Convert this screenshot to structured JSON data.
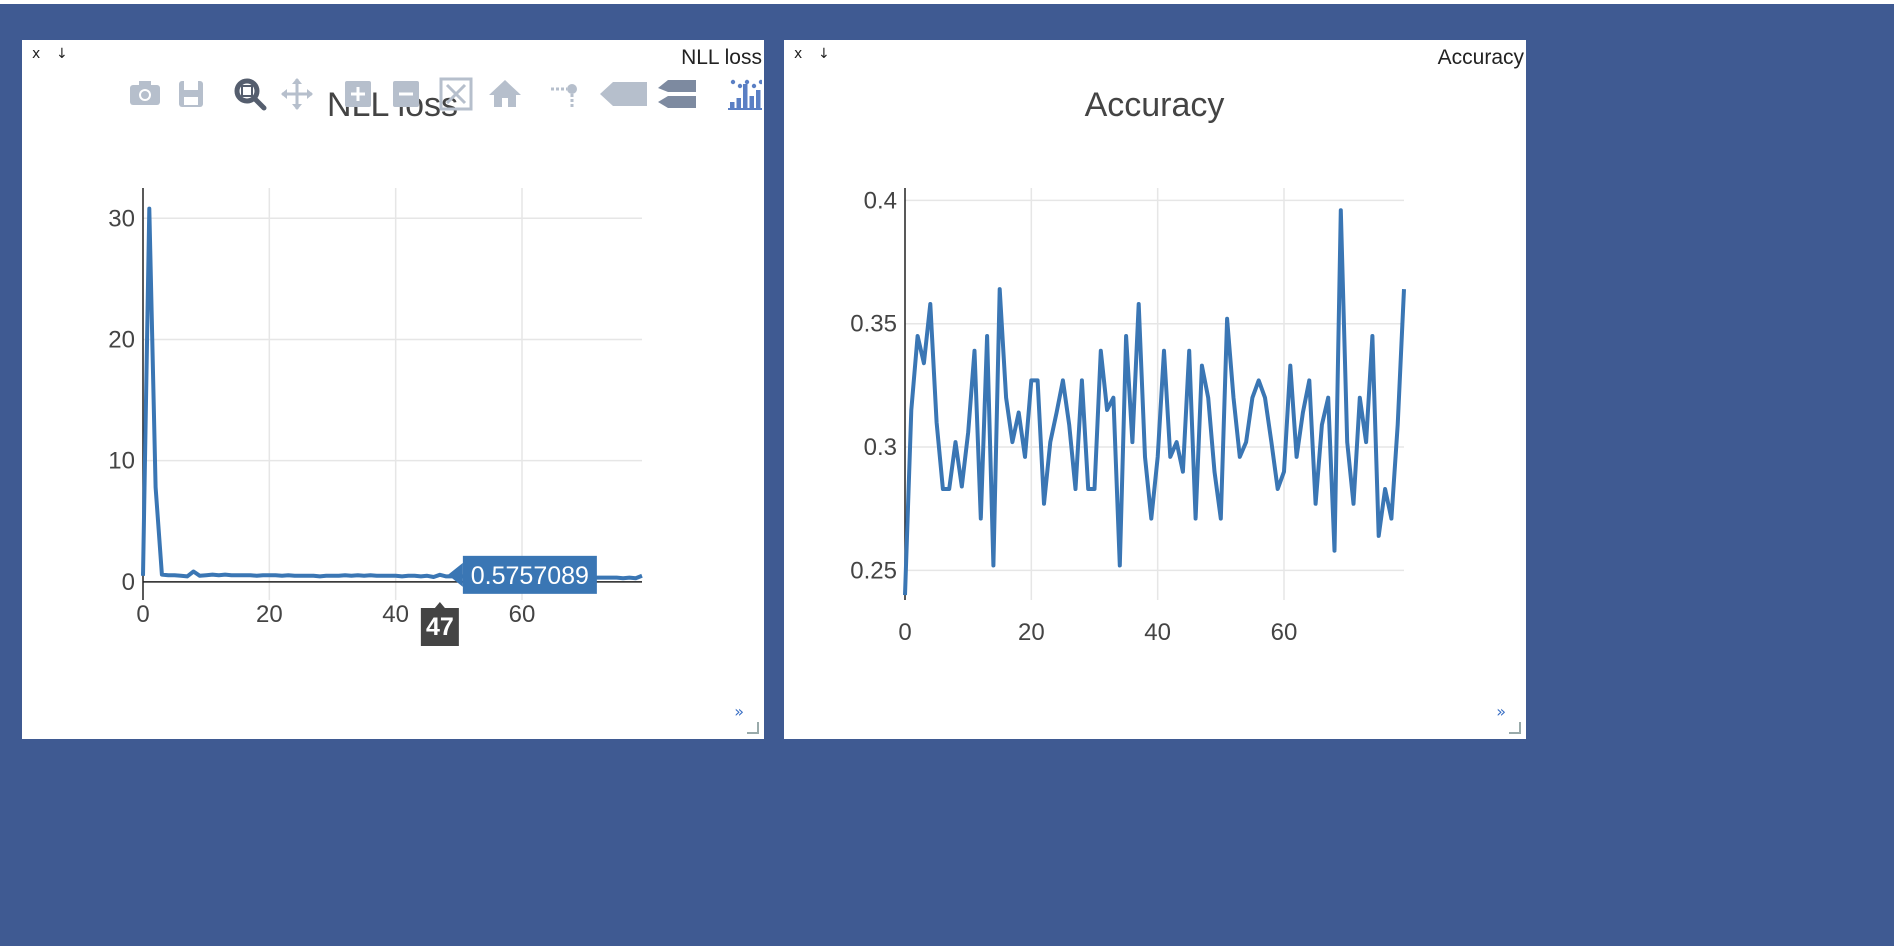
{
  "panes": [
    {
      "id": "loss",
      "pane_title": "NLL loss",
      "close_label": "x",
      "download_label": "↓",
      "expand_label": "»",
      "hover": {
        "x_label": "47",
        "y_label": "0.5757089"
      }
    },
    {
      "id": "acc",
      "pane_title": "Accuracy",
      "close_label": "x",
      "download_label": "↓",
      "expand_label": "»"
    }
  ],
  "modebar": [
    {
      "name": "camera-icon",
      "tooltip": "Download plot as a png"
    },
    {
      "name": "save-icon",
      "tooltip": "Save and edit plot"
    },
    {
      "name": "zoom-icon",
      "tooltip": "Zoom"
    },
    {
      "name": "pan-icon",
      "tooltip": "Pan"
    },
    {
      "name": "zoom-in-icon",
      "tooltip": "Zoom in"
    },
    {
      "name": "zoom-out-icon",
      "tooltip": "Zoom out"
    },
    {
      "name": "autoscale-icon",
      "tooltip": "Autoscale"
    },
    {
      "name": "home-icon",
      "tooltip": "Reset axes"
    },
    {
      "name": "spike-icon",
      "tooltip": "Toggle Spike Lines"
    },
    {
      "name": "hover-closest-icon",
      "tooltip": "Show closest data on hover"
    },
    {
      "name": "hover-compare-icon",
      "tooltip": "Compare data on hover"
    },
    {
      "name": "plotly-logo-icon",
      "tooltip": "Produced with Plotly"
    }
  ],
  "colors": {
    "background": "#3f5a92",
    "line": "#3a76b4",
    "grid": "#e6e6e6",
    "hover_x_bg": "#444444",
    "modebar_active": "#5a7fc4",
    "modebar_idle": "#b6bfcc"
  },
  "chart_data": [
    {
      "type": "line",
      "title": "NLL loss",
      "xlabel": "",
      "ylabel": "",
      "xlim": [
        0,
        79
      ],
      "ylim": [
        -1.5,
        32.5
      ],
      "xticks": [
        0,
        20,
        40,
        60
      ],
      "yticks": [
        0,
        10,
        20,
        30
      ],
      "grid": true,
      "x": [
        0,
        1,
        2,
        3,
        4,
        5,
        6,
        7,
        8,
        9,
        10,
        11,
        12,
        13,
        14,
        15,
        16,
        17,
        18,
        19,
        20,
        21,
        22,
        23,
        24,
        25,
        26,
        27,
        28,
        29,
        30,
        31,
        32,
        33,
        34,
        35,
        36,
        37,
        38,
        39,
        40,
        41,
        42,
        43,
        44,
        45,
        46,
        47,
        48,
        49,
        50,
        51,
        52,
        53,
        54,
        55,
        56,
        57,
        58,
        59,
        60,
        61,
        62,
        63,
        64,
        65,
        66,
        67,
        68,
        69,
        70,
        71,
        72,
        73,
        74,
        75,
        76,
        77,
        78,
        79
      ],
      "y": [
        0.5,
        30.8,
        7.8,
        0.6,
        0.55,
        0.55,
        0.5,
        0.45,
        0.85,
        0.5,
        0.55,
        0.6,
        0.55,
        0.6,
        0.55,
        0.55,
        0.55,
        0.55,
        0.5,
        0.55,
        0.55,
        0.55,
        0.5,
        0.55,
        0.5,
        0.5,
        0.5,
        0.5,
        0.45,
        0.5,
        0.5,
        0.5,
        0.55,
        0.5,
        0.55,
        0.5,
        0.55,
        0.5,
        0.5,
        0.5,
        0.5,
        0.45,
        0.5,
        0.5,
        0.45,
        0.5,
        0.4,
        0.58,
        0.45,
        0.45,
        0.45,
        0.45,
        0.4,
        0.45,
        0.4,
        0.45,
        0.4,
        0.4,
        0.4,
        0.4,
        0.4,
        0.4,
        0.4,
        0.35,
        0.4,
        0.4,
        0.35,
        0.4,
        0.35,
        0.4,
        0.35,
        0.35,
        0.35,
        0.35,
        0.35,
        0.35,
        0.3,
        0.35,
        0.3,
        0.5
      ]
    },
    {
      "type": "line",
      "title": "Accuracy",
      "xlabel": "",
      "ylabel": "",
      "xlim": [
        0,
        79
      ],
      "ylim": [
        0.238,
        0.405
      ],
      "xticks": [
        0,
        20,
        40,
        60
      ],
      "yticks": [
        0.25,
        0.3,
        0.35,
        0.4
      ],
      "grid": true,
      "x": [
        0,
        1,
        2,
        3,
        4,
        5,
        6,
        7,
        8,
        9,
        10,
        11,
        12,
        13,
        14,
        15,
        16,
        17,
        18,
        19,
        20,
        21,
        22,
        23,
        24,
        25,
        26,
        27,
        28,
        29,
        30,
        31,
        32,
        33,
        34,
        35,
        36,
        37,
        38,
        39,
        40,
        41,
        42,
        43,
        44,
        45,
        46,
        47,
        48,
        49,
        50,
        51,
        52,
        53,
        54,
        55,
        56,
        57,
        58,
        59,
        60,
        61,
        62,
        63,
        64,
        65,
        66,
        67,
        68,
        69,
        70,
        71,
        72,
        73,
        74,
        75,
        76,
        77,
        78,
        79
      ],
      "y": [
        0.24,
        0.315,
        0.345,
        0.334,
        0.358,
        0.31,
        0.283,
        0.283,
        0.302,
        0.284,
        0.306,
        0.339,
        0.271,
        0.345,
        0.252,
        0.364,
        0.32,
        0.302,
        0.314,
        0.296,
        0.327,
        0.327,
        0.277,
        0.302,
        0.314,
        0.327,
        0.309,
        0.283,
        0.327,
        0.283,
        0.283,
        0.339,
        0.315,
        0.32,
        0.252,
        0.345,
        0.302,
        0.358,
        0.296,
        0.271,
        0.296,
        0.339,
        0.296,
        0.302,
        0.29,
        0.339,
        0.271,
        0.333,
        0.32,
        0.29,
        0.271,
        0.352,
        0.32,
        0.296,
        0.302,
        0.32,
        0.327,
        0.32,
        0.302,
        0.283,
        0.29,
        0.333,
        0.296,
        0.314,
        0.327,
        0.277,
        0.309,
        0.32,
        0.258,
        0.396,
        0.302,
        0.277,
        0.32,
        0.302,
        0.345,
        0.264,
        0.283,
        0.271,
        0.309,
        0.364
      ]
    }
  ]
}
